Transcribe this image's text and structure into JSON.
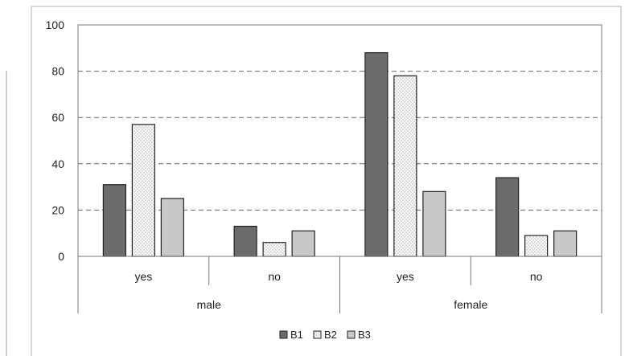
{
  "chart_data": {
    "type": "bar",
    "groups": [
      {
        "label": "male",
        "categories": [
          "yes",
          "no"
        ]
      },
      {
        "label": "female",
        "categories": [
          "yes",
          "no"
        ]
      }
    ],
    "categories": [
      "yes",
      "no",
      "yes",
      "no"
    ],
    "series": [
      {
        "name": "B1",
        "values": [
          31,
          13,
          88,
          34
        ],
        "color": "#6b6b6b",
        "pattern": "solid-dark"
      },
      {
        "name": "B2",
        "values": [
          57,
          6,
          78,
          9
        ],
        "color": "#f7f7f7",
        "pattern": "dotted-light"
      },
      {
        "name": "B3",
        "values": [
          25,
          11,
          28,
          11
        ],
        "color": "#c8c8c8",
        "pattern": "solid-light"
      }
    ],
    "y_ticks": [
      "0",
      "20",
      "40",
      "60",
      "80",
      "100"
    ],
    "ylim": [
      0,
      100
    ],
    "grid": "dashed horizontal",
    "legend": "bottom-center",
    "title": "",
    "xlabel": "",
    "ylabel": ""
  }
}
